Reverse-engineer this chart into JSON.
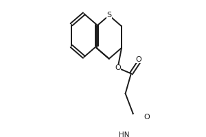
{
  "bg_color": "#ffffff",
  "line_color": "#1a1a1a",
  "line_width": 1.4,
  "figsize": [
    3.0,
    2.0
  ],
  "dpi": 100,
  "atoms": {
    "S_label": "S",
    "O_ester_label": "O",
    "O_carbonyl1_label": "O",
    "NH_label": "HN",
    "O_amide_label": "O"
  }
}
